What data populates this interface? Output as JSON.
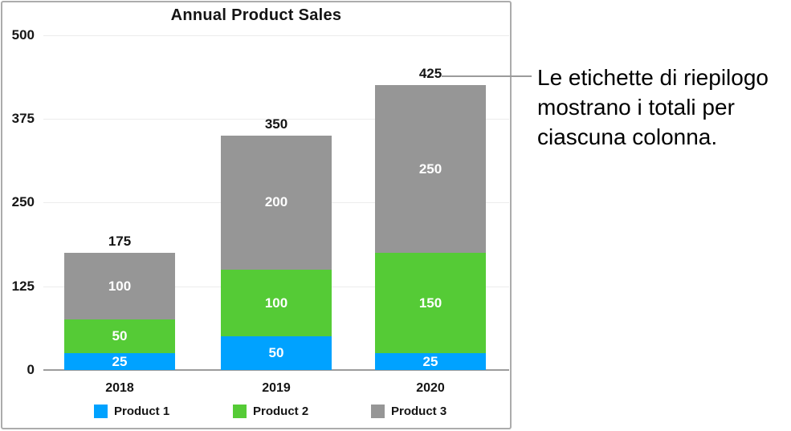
{
  "annotation": {
    "text": "Le etichette di riepilogo mostrano i totali per ciascuna colonna."
  },
  "chart_data": {
    "type": "bar",
    "stacked": true,
    "title": "Annual Product Sales",
    "categories": [
      "2018",
      "2019",
      "2020"
    ],
    "series": [
      {
        "name": "Product 1",
        "color": "#00a2ff",
        "values": [
          25,
          50,
          25
        ]
      },
      {
        "name": "Product 2",
        "color": "#55cb36",
        "values": [
          50,
          100,
          150
        ]
      },
      {
        "name": "Product 3",
        "color": "#969696",
        "values": [
          100,
          200,
          250
        ]
      }
    ],
    "totals": [
      175,
      350,
      425
    ],
    "y_ticks": [
      0,
      125,
      250,
      375,
      500
    ],
    "ylim": [
      0,
      500
    ],
    "grid": true,
    "legend_position": "bottom",
    "label_color_in_bar": "#ffffff"
  }
}
